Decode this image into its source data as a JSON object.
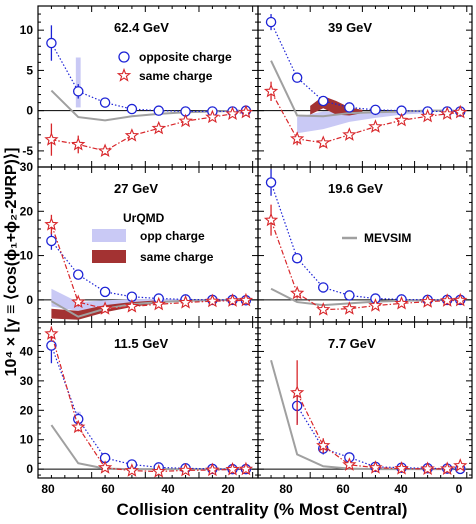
{
  "figure": {
    "ylabel": "10⁴ × [γ ≡ ⟨cos(ϕ₁+ϕ₂-2ΨRP)⟩]",
    "xlabel": "Collision centrality (% Most Central)",
    "x_ticks": [
      "80",
      "60",
      "40",
      "20",
      "0"
    ],
    "legend_data": {
      "opp": "opposite charge",
      "same": "same charge"
    },
    "legend_model": {
      "title": "UrQMD",
      "opp": "opp charge",
      "same": "same charge",
      "mevsim": "MEVSIM"
    }
  },
  "colors": {
    "opp": "#1d23d6",
    "same": "#d8262a",
    "urqmd_opp": "#c9c9f5",
    "urqmd_same": "#a33232",
    "mevsim": "#a0a0a0",
    "axis": "#000000"
  },
  "chart_data": [
    {
      "type": "scatter",
      "title": "62.4 GeV",
      "xlim": [
        80,
        -2
      ],
      "ylim": [
        -7,
        13
      ],
      "y_ticks": [
        10,
        5,
        0,
        -5
      ],
      "series": [
        {
          "name": "opposite charge",
          "x": [
            75,
            65,
            55,
            45,
            35,
            25,
            15,
            7.5,
            2.5
          ],
          "y": [
            8.4,
            2.4,
            1.0,
            0.2,
            0.0,
            -0.1,
            -0.1,
            -0.1,
            0.0
          ],
          "err": [
            2.2,
            0.9,
            0.4,
            0.3,
            0.2,
            0.2,
            0.2,
            0.2,
            0.2
          ]
        },
        {
          "name": "same charge",
          "x": [
            75,
            65,
            55,
            45,
            35,
            25,
            15,
            7.5,
            2.5
          ],
          "y": [
            -3.6,
            -4.2,
            -5.0,
            -3.1,
            -2.2,
            -1.3,
            -0.8,
            -0.4,
            -0.2
          ],
          "err": [
            2.0,
            1.1,
            0.5,
            0.4,
            0.3,
            0.2,
            0.2,
            0.2,
            0.2
          ]
        }
      ],
      "urqmd_opp": {
        "x": [
          65,
          65
        ],
        "lo": [
          0.4,
          0.4
        ],
        "hi": [
          6.6,
          6.6
        ],
        "w": 1.8
      },
      "urqmd_same": null,
      "mevsim": {
        "x": [
          75,
          65,
          55,
          45,
          35,
          25,
          15,
          5
        ],
        "y": [
          2.5,
          -0.8,
          -1.2,
          -0.7,
          -0.4,
          -0.2,
          -0.1,
          0
        ]
      }
    },
    {
      "type": "scatter",
      "title": "39 GeV",
      "xlim": [
        80,
        -2
      ],
      "ylim": [
        -7,
        13
      ],
      "y_ticks": [
        10,
        5,
        0,
        -5
      ],
      "series": [
        {
          "name": "opposite charge",
          "x": [
            75,
            65,
            55,
            45,
            35,
            25,
            15,
            7.5,
            2.5
          ],
          "y": [
            11.0,
            4.1,
            1.2,
            0.4,
            0.1,
            0.0,
            -0.1,
            -0.1,
            -0.1
          ],
          "err": [
            1.0,
            0.5,
            0.3,
            0.2,
            0.2,
            0.2,
            0.2,
            0.2,
            0.2
          ]
        },
        {
          "name": "same charge",
          "x": [
            75,
            65,
            55,
            45,
            35,
            25,
            15,
            7.5,
            2.5
          ],
          "y": [
            2.4,
            -3.5,
            -4.0,
            -3.0,
            -2.0,
            -1.2,
            -0.7,
            -0.4,
            -0.2
          ],
          "err": [
            1.2,
            0.8,
            0.5,
            0.3,
            0.3,
            0.2,
            0.2,
            0.2,
            0.2
          ]
        }
      ],
      "urqmd_opp": {
        "x": [
          65,
          55,
          45,
          35,
          25,
          15
        ],
        "lo": [
          -2.8,
          -2.3,
          -1.4,
          -0.9,
          -0.5,
          -0.3
        ],
        "hi": [
          -0.8,
          -0.1,
          -0.2,
          -0.2,
          -0.1,
          0.0
        ]
      },
      "urqmd_same": {
        "x": [
          60,
          55,
          50,
          45,
          40
        ],
        "lo": [
          -0.5,
          0.3,
          -0.5,
          -0.6,
          -0.3
        ],
        "hi": [
          0.6,
          1.8,
          1.2,
          0.4,
          0.1
        ]
      },
      "mevsim": {
        "x": [
          75,
          65,
          55,
          45,
          35,
          25,
          15,
          5
        ],
        "y": [
          6.2,
          -0.6,
          -0.7,
          -0.3,
          -0.2,
          -0.1,
          0,
          0
        ]
      }
    },
    {
      "type": "scatter",
      "title": "27 GeV",
      "xlim": [
        80,
        -2
      ],
      "ylim": [
        -5,
        30
      ],
      "y_ticks": [
        30,
        20,
        10,
        0
      ],
      "series": [
        {
          "name": "opposite charge",
          "x": [
            75,
            65,
            55,
            45,
            35,
            25,
            15,
            7.5,
            2.5
          ],
          "y": [
            13.3,
            5.7,
            1.8,
            0.7,
            0.3,
            0.1,
            0.0,
            0.0,
            -0.1
          ],
          "err": [
            2.0,
            0.8,
            0.5,
            0.3,
            0.3,
            0.2,
            0.2,
            0.2,
            0.2
          ]
        },
        {
          "name": "same charge",
          "x": [
            75,
            65,
            55,
            45,
            35,
            25,
            15,
            7.5,
            2.5
          ],
          "y": [
            17.0,
            -0.5,
            -2.0,
            -1.5,
            -1.0,
            -0.6,
            -0.3,
            -0.2,
            -0.1
          ],
          "err": [
            2.2,
            1.0,
            0.5,
            0.4,
            0.3,
            0.2,
            0.2,
            0.2,
            0.2
          ]
        }
      ],
      "urqmd_opp": {
        "x": [
          75,
          65,
          55,
          45,
          35,
          25
        ],
        "lo": [
          -1.5,
          -2.5,
          -1.3,
          -0.6,
          -0.3,
          -0.1
        ],
        "hi": [
          2.5,
          -0.5,
          -0.1,
          0.1,
          0.2,
          0.1
        ]
      },
      "urqmd_same": {
        "x": [
          75,
          65,
          55,
          45,
          35
        ],
        "lo": [
          -4.2,
          -4.5,
          -2.8,
          -1.6,
          -0.7
        ],
        "hi": [
          -2.0,
          -2.5,
          -1.2,
          -0.5,
          -0.1
        ]
      },
      "mevsim": {
        "x": [
          75,
          65,
          55,
          45,
          35,
          25,
          15,
          5
        ],
        "y": [
          -0.3,
          -3.8,
          -2.0,
          -1.0,
          -0.5,
          -0.2,
          -0.1,
          0
        ]
      }
    },
    {
      "type": "scatter",
      "title": "19.6 GeV",
      "xlim": [
        80,
        -2
      ],
      "ylim": [
        -5,
        30
      ],
      "y_ticks": [
        30,
        20,
        10,
        0
      ],
      "series": [
        {
          "name": "opposite charge",
          "x": [
            75,
            65,
            55,
            45,
            35,
            25,
            15,
            7.5,
            2.5
          ],
          "y": [
            26.5,
            9.4,
            2.8,
            1.0,
            0.3,
            0.1,
            0.0,
            0.0,
            0.0
          ],
          "err": [
            3.0,
            1.0,
            0.4,
            0.3,
            0.2,
            0.2,
            0.2,
            0.2,
            0.2
          ]
        },
        {
          "name": "same charge",
          "x": [
            75,
            65,
            55,
            45,
            35,
            25,
            15,
            7.5,
            2.5
          ],
          "y": [
            18.0,
            1.5,
            -2.2,
            -2.0,
            -1.3,
            -0.8,
            -0.4,
            -0.2,
            -0.1
          ],
          "err": [
            3.5,
            1.2,
            0.6,
            0.4,
            0.3,
            0.3,
            0.2,
            0.2,
            0.2
          ]
        }
      ],
      "urqmd_opp": null,
      "urqmd_same": null,
      "mevsim": {
        "x": [
          75,
          65,
          55,
          45,
          35,
          25,
          15,
          5
        ],
        "y": [
          2.5,
          -0.5,
          -1.2,
          -0.8,
          -0.4,
          -0.2,
          -0.1,
          0
        ]
      }
    },
    {
      "type": "scatter",
      "title": "11.5 GeV",
      "xlim": [
        80,
        -2
      ],
      "ylim": [
        -3,
        50
      ],
      "y_ticks": [
        40,
        30,
        20,
        10,
        0
      ],
      "series": [
        {
          "name": "opposite charge",
          "x": [
            75,
            65,
            55,
            45,
            35,
            25,
            15,
            7.5,
            2.5
          ],
          "y": [
            42.0,
            17.0,
            3.8,
            1.6,
            0.6,
            0.3,
            0.1,
            0.0,
            0.0
          ],
          "err": [
            6.0,
            2.0,
            0.8,
            0.4,
            0.3,
            0.3,
            0.2,
            0.2,
            0.2
          ]
        },
        {
          "name": "same charge",
          "x": [
            75,
            65,
            55,
            45,
            35,
            25,
            15,
            7.5,
            2.5
          ],
          "y": [
            46.0,
            14.3,
            0.5,
            -0.5,
            -0.8,
            -0.4,
            -0.3,
            -0.1,
            0.0
          ],
          "err": [
            2.5,
            1.5,
            0.7,
            0.4,
            0.3,
            0.3,
            0.2,
            0.2,
            0.2
          ]
        }
      ],
      "urqmd_opp": {
        "x": [
          65,
          65
        ],
        "lo": [
          15.5,
          15.5
        ],
        "hi": [
          19.5,
          19.5
        ],
        "w": 1.8
      },
      "urqmd_same": null,
      "mevsim": {
        "x": [
          75,
          65,
          55,
          45,
          35,
          25,
          15,
          5
        ],
        "y": [
          15.0,
          2.0,
          0.2,
          0,
          0,
          0,
          0,
          0
        ]
      }
    },
    {
      "type": "scatter",
      "title": "7.7 GeV",
      "xlim": [
        80,
        -2
      ],
      "ylim": [
        -3,
        50
      ],
      "y_ticks": [
        40,
        30,
        20,
        10,
        0
      ],
      "series": [
        {
          "name": "opposite charge",
          "x": [
            65,
            55,
            45,
            35,
            25,
            15,
            7.5,
            2.5
          ],
          "y": [
            21.5,
            7.0,
            4.0,
            0.8,
            0.5,
            0.3,
            0.2,
            0.1
          ],
          "err": [
            6.0,
            2.0,
            1.0,
            0.6,
            0.4,
            0.3,
            0.3,
            0.3
          ]
        },
        {
          "name": "same charge",
          "x": [
            65,
            55,
            45,
            35,
            25,
            15,
            7.5,
            2.5
          ],
          "y": [
            26.0,
            8.0,
            1.5,
            0.5,
            0.2,
            0.1,
            0.1,
            1.2
          ],
          "err": [
            11.0,
            2.5,
            1.0,
            0.6,
            0.4,
            0.3,
            0.3,
            0.5
          ]
        }
      ],
      "urqmd_opp": null,
      "urqmd_same": null,
      "mevsim": {
        "x": [
          75,
          65,
          55,
          45,
          35,
          25,
          15,
          5
        ],
        "y": [
          37.0,
          5.0,
          1.0,
          0.2,
          0,
          0,
          0,
          0
        ]
      }
    }
  ]
}
